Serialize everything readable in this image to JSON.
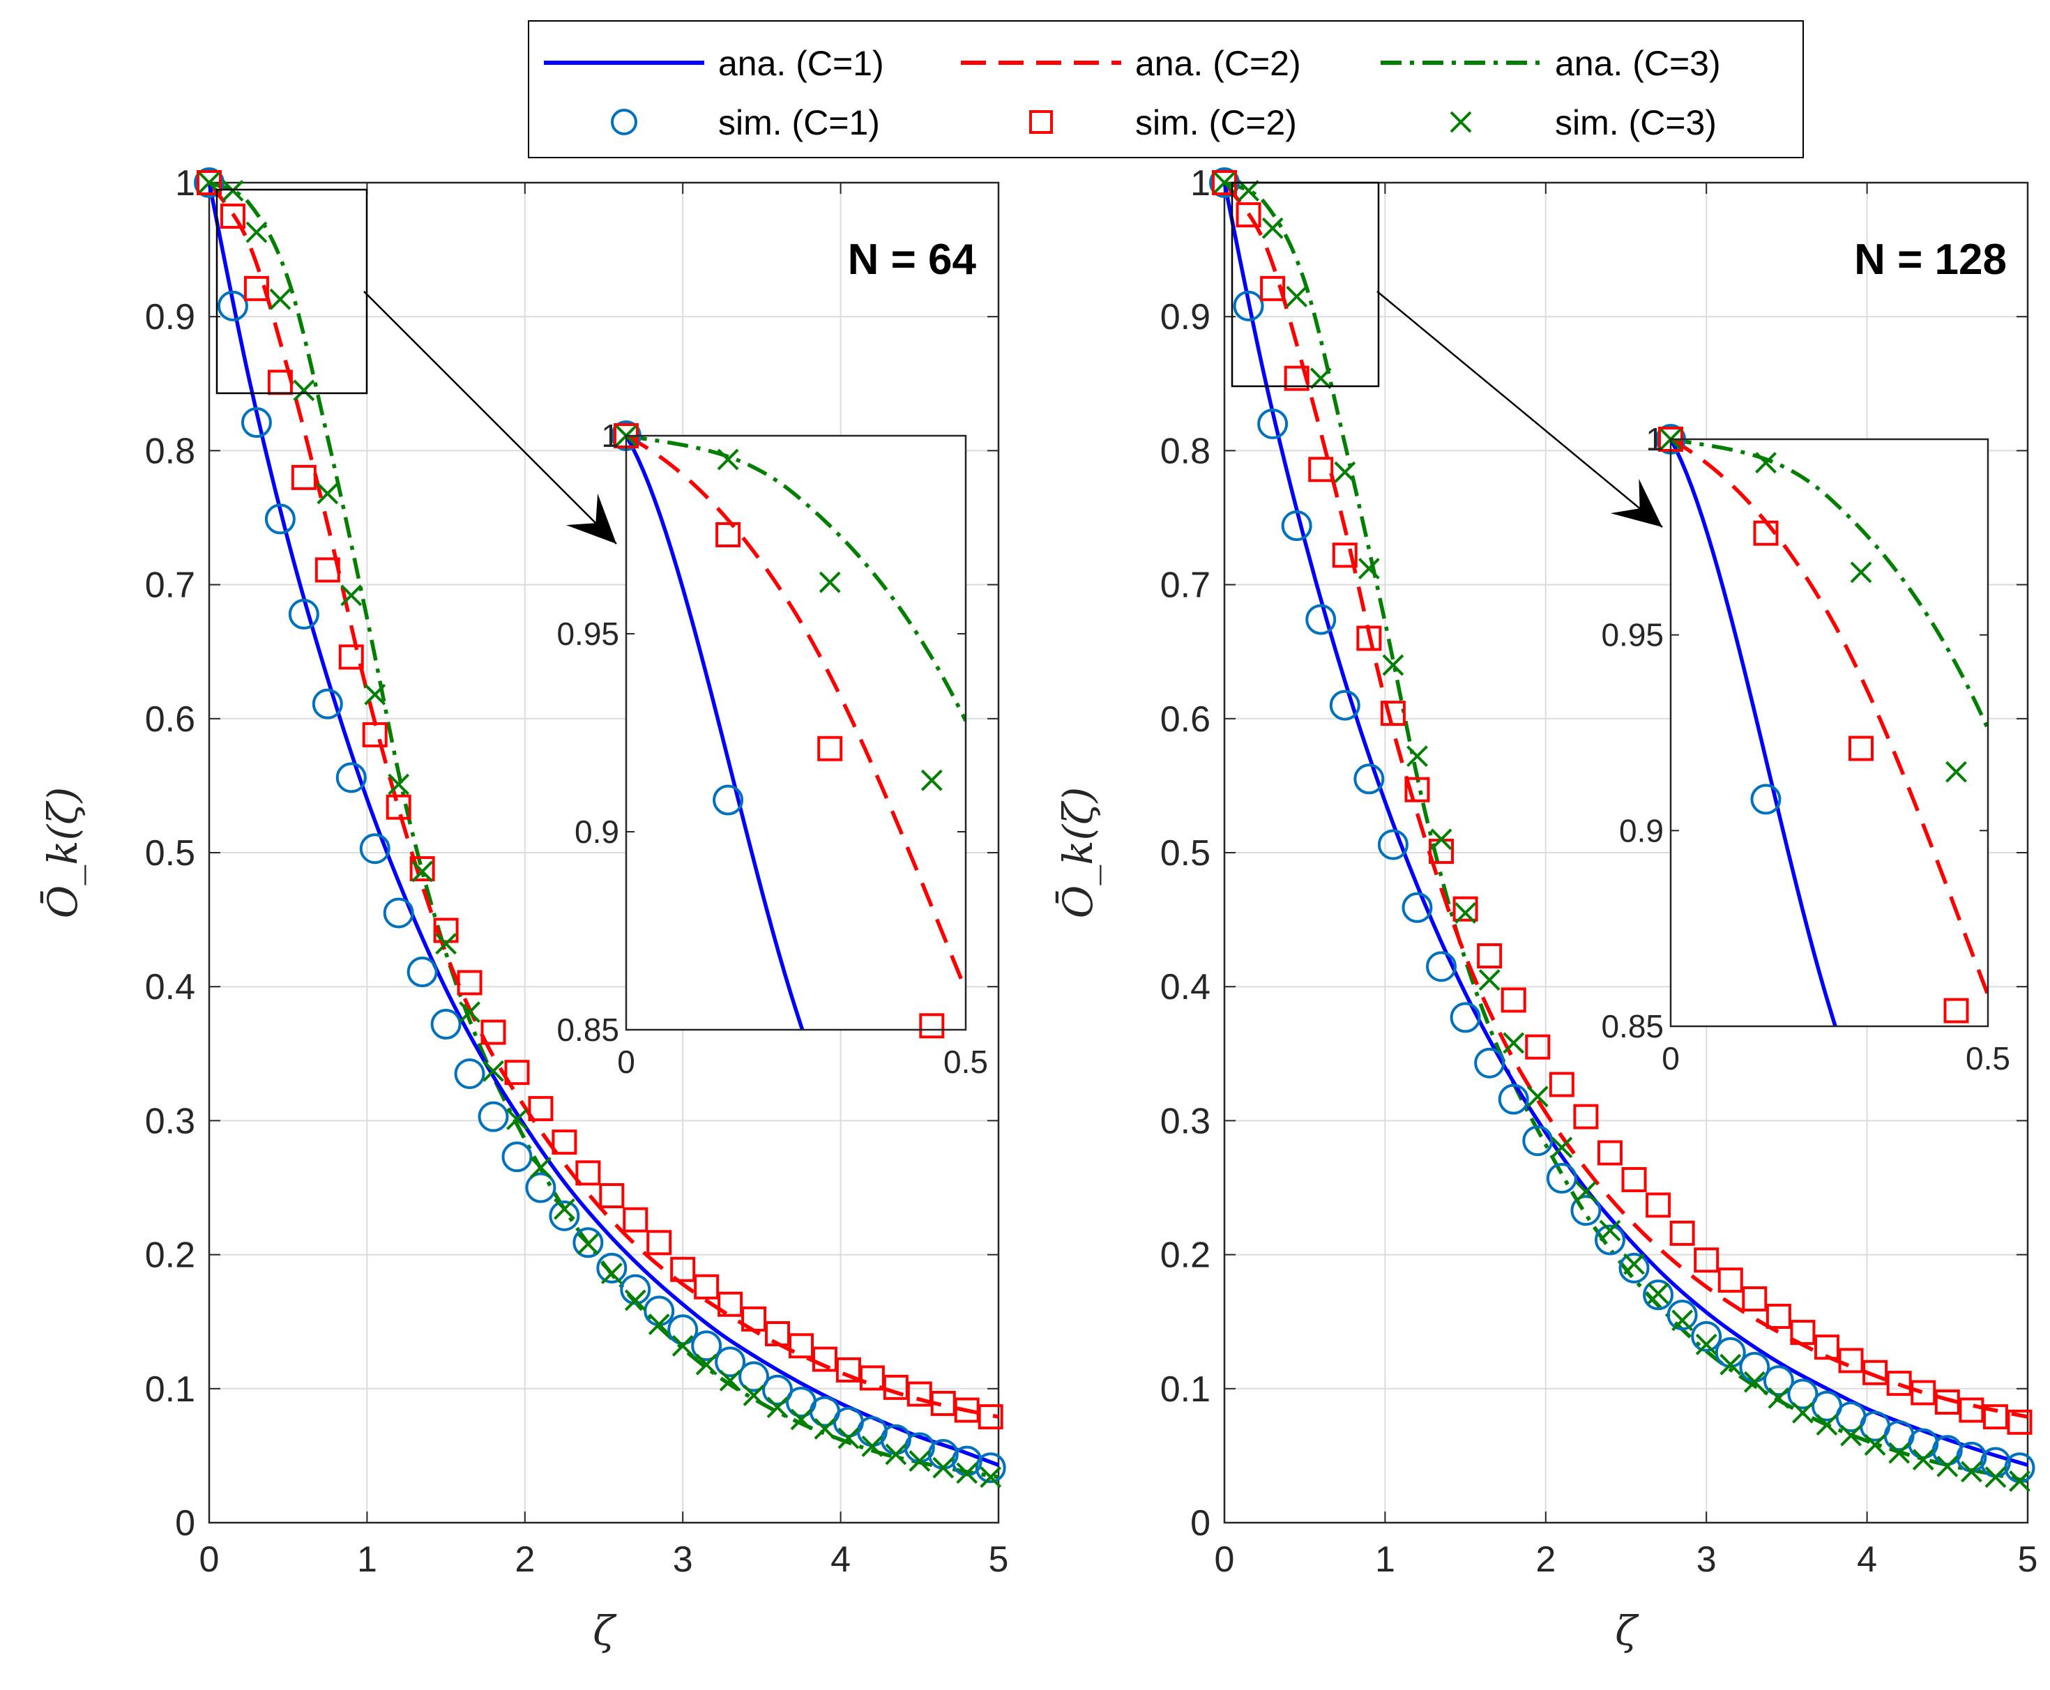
{
  "legend": {
    "entries": [
      {
        "key": "ana1",
        "label": "ana. (C=1)",
        "color": "#0000ff",
        "kind": "line",
        "dash": "solid"
      },
      {
        "key": "ana2",
        "label": "ana. (C=2)",
        "color": "#ff0000",
        "kind": "line",
        "dash": "dashed"
      },
      {
        "key": "ana3",
        "label": "ana. (C=3)",
        "color": "#007f00",
        "kind": "line",
        "dash": "dashdot"
      },
      {
        "key": "sim1",
        "label": "sim. (C=1)",
        "color": "#0072bd",
        "kind": "marker",
        "marker": "circle"
      },
      {
        "key": "sim2",
        "label": "sim. (C=2)",
        "color": "#ff0000",
        "kind": "marker",
        "marker": "square"
      },
      {
        "key": "sim3",
        "label": "sim. (C=3)",
        "color": "#007f00",
        "kind": "marker",
        "marker": "cross"
      }
    ]
  },
  "colors": {
    "c1_line": "#0000ff",
    "c1_marker": "#0072bd",
    "c2": "#ff0000",
    "c3": "#007f00",
    "grid": "#dcdcdc",
    "axis": "#262626"
  },
  "chart_data": [
    {
      "type": "line",
      "title": "N = 64",
      "xlabel": "ζ",
      "ylabel": "Ō_k(ζ)",
      "xlim": [
        0,
        5
      ],
      "ylim": [
        0,
        1
      ],
      "xticks": [
        0,
        1,
        2,
        3,
        4,
        5
      ],
      "yticks": [
        0,
        0.1,
        0.2,
        0.3,
        0.4,
        0.5,
        0.6,
        0.7,
        0.8,
        0.9,
        1
      ],
      "ytick_labels": [
        "0",
        "0.1",
        "0.2",
        "0.3",
        "0.4",
        "0.5",
        "0.6",
        "0.7",
        "0.8",
        "0.9",
        "1"
      ],
      "grid": true,
      "analytic": {
        "x": [
          0,
          0.25,
          0.5,
          0.75,
          1,
          1.25,
          1.5,
          1.75,
          2,
          2.25,
          2.5,
          2.75,
          3,
          3.25,
          3.5,
          3.75,
          4,
          4.25,
          4.5,
          4.75,
          5
        ],
        "C1": [
          1,
          0.855,
          0.733,
          0.63,
          0.54,
          0.464,
          0.398,
          0.343,
          0.296,
          0.254,
          0.219,
          0.189,
          0.163,
          0.14,
          0.121,
          0.104,
          0.089,
          0.076,
          0.064,
          0.054,
          0.043
        ],
        "C2": [
          1,
          0.955,
          0.86,
          0.745,
          0.62,
          0.513,
          0.425,
          0.359,
          0.31,
          0.268,
          0.232,
          0.202,
          0.178,
          0.158,
          0.14,
          0.125,
          0.112,
          0.101,
          0.092,
          0.085,
          0.079
        ],
        "C3": [
          1,
          0.985,
          0.928,
          0.81,
          0.675,
          0.533,
          0.425,
          0.346,
          0.286,
          0.234,
          0.193,
          0.158,
          0.13,
          0.107,
          0.089,
          0.074,
          0.062,
          0.052,
          0.045,
          0.039,
          0.034
        ]
      },
      "simulation": {
        "x": [
          0,
          0.15,
          0.3,
          0.45,
          0.6,
          0.75,
          0.9,
          1.05,
          1.2,
          1.35,
          1.5,
          1.65,
          1.8,
          1.95,
          2.1,
          2.25,
          2.4,
          2.55,
          2.7,
          2.85,
          3,
          3.15,
          3.3,
          3.45,
          3.6,
          3.75,
          3.9,
          4.05,
          4.2,
          4.35,
          4.5,
          4.65,
          4.8,
          4.95
        ],
        "C1": [
          1,
          0.908,
          0.821,
          0.749,
          0.678,
          0.611,
          0.556,
          0.503,
          0.455,
          0.411,
          0.372,
          0.335,
          0.303,
          0.273,
          0.25,
          0.229,
          0.209,
          0.19,
          0.174,
          0.158,
          0.144,
          0.132,
          0.12,
          0.109,
          0.099,
          0.09,
          0.083,
          0.075,
          0.068,
          0.062,
          0.056,
          0.051,
          0.046,
          0.041
        ],
        "C2": [
          1,
          0.975,
          0.921,
          0.851,
          0.78,
          0.711,
          0.646,
          0.588,
          0.534,
          0.488,
          0.442,
          0.403,
          0.366,
          0.336,
          0.309,
          0.284,
          0.261,
          0.244,
          0.226,
          0.209,
          0.189,
          0.176,
          0.163,
          0.152,
          0.141,
          0.132,
          0.122,
          0.114,
          0.108,
          0.101,
          0.096,
          0.089,
          0.084,
          0.079
        ],
        "C3": [
          1,
          0.994,
          0.963,
          0.913,
          0.845,
          0.768,
          0.692,
          0.618,
          0.551,
          0.486,
          0.432,
          0.381,
          0.337,
          0.301,
          0.265,
          0.234,
          0.208,
          0.186,
          0.166,
          0.148,
          0.132,
          0.118,
          0.106,
          0.095,
          0.086,
          0.077,
          0.07,
          0.063,
          0.057,
          0.051,
          0.046,
          0.041,
          0.037,
          0.034
        ]
      },
      "inset": {
        "xlim": [
          0,
          0.5
        ],
        "ylim": [
          0.85,
          1
        ],
        "xticks": [
          0,
          0.5
        ],
        "xtick_labels": [
          "0",
          "0.5"
        ],
        "yticks": [
          0.85,
          0.9,
          0.95,
          1
        ],
        "ytick_labels": [
          "0.85",
          "0.9",
          "0.95",
          "1"
        ]
      }
    },
    {
      "type": "line",
      "title": "N = 128",
      "xlabel": "ζ",
      "ylabel": "Ō_k(ζ)",
      "xlim": [
        0,
        5
      ],
      "ylim": [
        0,
        1
      ],
      "xticks": [
        0,
        1,
        2,
        3,
        4,
        5
      ],
      "yticks": [
        0,
        0.1,
        0.2,
        0.3,
        0.4,
        0.5,
        0.6,
        0.7,
        0.8,
        0.9,
        1
      ],
      "ytick_labels": [
        "0",
        "0.1",
        "0.2",
        "0.3",
        "0.4",
        "0.5",
        "0.6",
        "0.7",
        "0.8",
        "0.9",
        "1"
      ],
      "grid": true,
      "analytic": {
        "x": [
          0,
          0.25,
          0.5,
          0.75,
          1,
          1.25,
          1.5,
          1.75,
          2,
          2.25,
          2.5,
          2.75,
          3,
          3.25,
          3.5,
          3.75,
          4,
          4.25,
          4.5,
          4.75,
          5
        ],
        "C1": [
          1,
          0.855,
          0.733,
          0.628,
          0.538,
          0.461,
          0.395,
          0.339,
          0.291,
          0.249,
          0.214,
          0.183,
          0.157,
          0.135,
          0.116,
          0.1,
          0.085,
          0.073,
          0.062,
          0.052,
          0.043
        ],
        "C2": [
          1,
          0.955,
          0.858,
          0.742,
          0.614,
          0.51,
          0.423,
          0.357,
          0.306,
          0.264,
          0.229,
          0.2,
          0.176,
          0.156,
          0.139,
          0.124,
          0.112,
          0.101,
          0.092,
          0.085,
          0.079
        ],
        "C3": [
          1,
          0.985,
          0.926,
          0.805,
          0.672,
          0.53,
          0.42,
          0.341,
          0.282,
          0.23,
          0.189,
          0.156,
          0.128,
          0.106,
          0.088,
          0.073,
          0.061,
          0.051,
          0.043,
          0.037,
          0.031
        ]
      },
      "simulation": {
        "x": [
          0,
          0.15,
          0.3,
          0.45,
          0.6,
          0.75,
          0.9,
          1.05,
          1.2,
          1.35,
          1.5,
          1.65,
          1.8,
          1.95,
          2.1,
          2.25,
          2.4,
          2.55,
          2.7,
          2.85,
          3,
          3.15,
          3.3,
          3.45,
          3.6,
          3.75,
          3.9,
          4.05,
          4.2,
          4.35,
          4.5,
          4.65,
          4.8,
          4.95
        ],
        "C1": [
          1,
          0.908,
          0.82,
          0.744,
          0.674,
          0.61,
          0.555,
          0.506,
          0.459,
          0.415,
          0.377,
          0.343,
          0.316,
          0.285,
          0.257,
          0.233,
          0.211,
          0.19,
          0.17,
          0.155,
          0.139,
          0.127,
          0.116,
          0.106,
          0.096,
          0.087,
          0.079,
          0.072,
          0.065,
          0.059,
          0.054,
          0.049,
          0.045,
          0.041
        ],
        "C2": [
          1,
          0.976,
          0.921,
          0.854,
          0.786,
          0.722,
          0.66,
          0.604,
          0.547,
          0.501,
          0.458,
          0.423,
          0.39,
          0.355,
          0.327,
          0.303,
          0.276,
          0.256,
          0.237,
          0.216,
          0.196,
          0.181,
          0.167,
          0.154,
          0.142,
          0.131,
          0.121,
          0.112,
          0.104,
          0.097,
          0.09,
          0.084,
          0.079,
          0.075
        ],
        "C3": [
          1,
          0.994,
          0.966,
          0.915,
          0.854,
          0.784,
          0.712,
          0.64,
          0.572,
          0.51,
          0.455,
          0.405,
          0.358,
          0.318,
          0.28,
          0.247,
          0.218,
          0.193,
          0.171,
          0.151,
          0.133,
          0.118,
          0.105,
          0.093,
          0.082,
          0.073,
          0.065,
          0.058,
          0.052,
          0.047,
          0.042,
          0.038,
          0.034,
          0.031
        ]
      },
      "inset": {
        "xlim": [
          0,
          0.5
        ],
        "ylim": [
          0.85,
          1
        ],
        "xticks": [
          0,
          0.5
        ],
        "xtick_labels": [
          "0",
          "0.5"
        ],
        "yticks": [
          0.85,
          0.9,
          0.95,
          1
        ],
        "ytick_labels": [
          "0.85",
          "0.9",
          "0.95",
          "1"
        ]
      }
    }
  ]
}
